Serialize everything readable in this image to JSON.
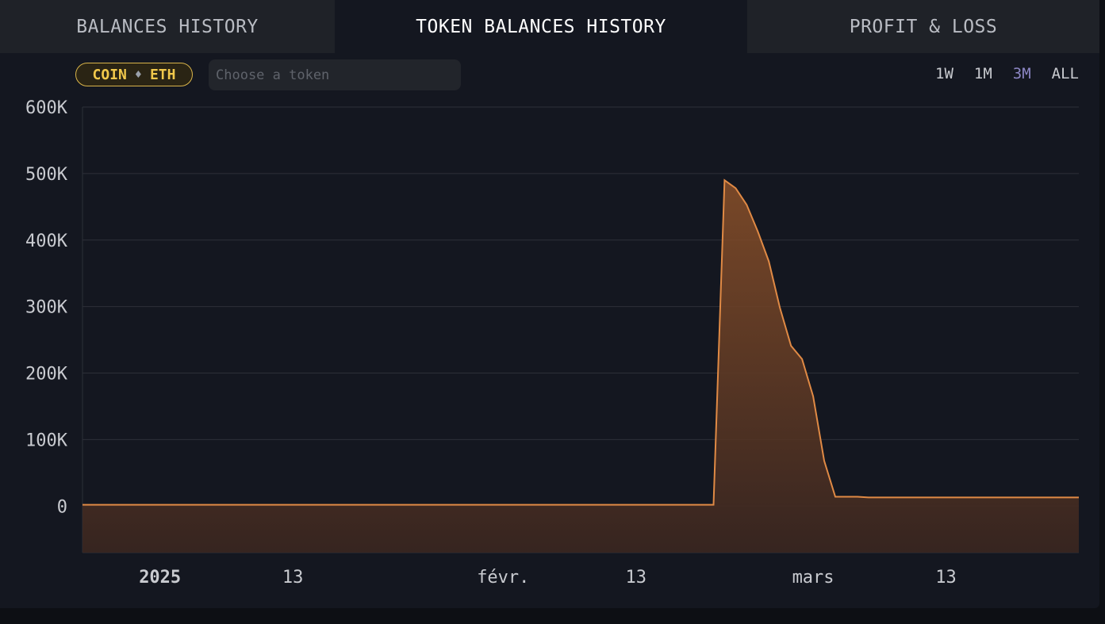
{
  "tabs": [
    {
      "label": "BALANCES HISTORY",
      "active": false
    },
    {
      "label": "TOKEN BALANCES HISTORY",
      "active": true
    },
    {
      "label": "PROFIT & LOSS",
      "active": false
    }
  ],
  "toolbar": {
    "coin_label": "COIN",
    "coin_symbol": "ETH",
    "token_placeholder": "Choose a token",
    "ranges": [
      "1W",
      "1M",
      "3M",
      "ALL"
    ],
    "active_range": "3M"
  },
  "colors": {
    "line": "#e08a45",
    "accent_badge": "#f1c84b",
    "active_range": "#8c86c4"
  },
  "icons": {
    "coin_icon": "ethereum-icon"
  },
  "chart_data": {
    "type": "area",
    "ylim": [
      -70000,
      600000
    ],
    "y_ticks": [
      {
        "value": 600000,
        "label": "600K"
      },
      {
        "value": 500000,
        "label": "500K"
      },
      {
        "value": 400000,
        "label": "400K"
      },
      {
        "value": 300000,
        "label": "300K"
      },
      {
        "value": 200000,
        "label": "200K"
      },
      {
        "value": 100000,
        "label": "100K"
      },
      {
        "value": 0,
        "label": "0"
      }
    ],
    "x_range": [
      "2024-12-25",
      "2025-03-25"
    ],
    "x_ticks": [
      {
        "date": "2025-01-01",
        "label": "2025",
        "bold": true
      },
      {
        "date": "2025-01-13",
        "label": "13",
        "bold": false
      },
      {
        "date": "2025-02-01",
        "label": "févr.",
        "bold": false
      },
      {
        "date": "2025-02-13",
        "label": "13",
        "bold": false
      },
      {
        "date": "2025-03-01",
        "label": "mars",
        "bold": false
      },
      {
        "date": "2025-03-13",
        "label": "13",
        "bold": false
      }
    ],
    "x": [
      "2024-12-25",
      "2025-02-20",
      "2025-02-21",
      "2025-02-22",
      "2025-02-23",
      "2025-02-24",
      "2025-02-25",
      "2025-02-26",
      "2025-02-27",
      "2025-02-28",
      "2025-03-01",
      "2025-03-02",
      "2025-03-03",
      "2025-03-04",
      "2025-03-05",
      "2025-03-06",
      "2025-03-25"
    ],
    "y": [
      2000,
      2000,
      490000,
      478000,
      453000,
      413000,
      368000,
      298000,
      241000,
      221000,
      165000,
      68000,
      14000,
      14000,
      14000,
      13000,
      13000
    ],
    "grid": true
  }
}
